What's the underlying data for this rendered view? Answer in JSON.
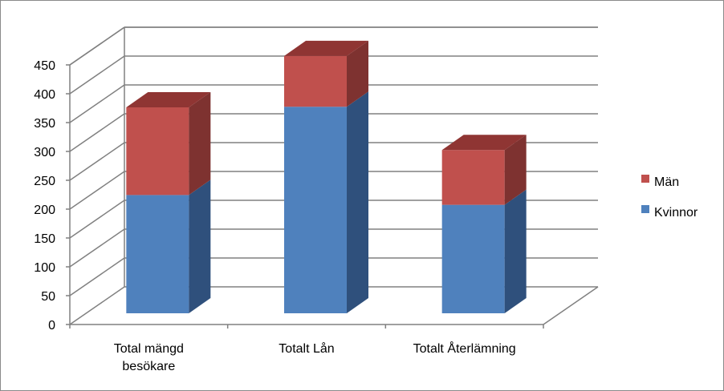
{
  "chart_data": {
    "type": "bar",
    "stacked": true,
    "style": "3d",
    "categories": [
      "Total mängd besökare",
      "Totalt Lån",
      "Totalt Återlämning"
    ],
    "category_lines": [
      [
        "Total mängd",
        "besökare"
      ],
      [
        "Totalt Lån"
      ],
      [
        "Totalt Återlämning"
      ]
    ],
    "series": [
      {
        "name": "Kvinnor",
        "values": [
          205,
          358,
          188
        ],
        "color": "#4f81bd",
        "side_color": "#2f507c",
        "top_color": "#3d68a2"
      },
      {
        "name": "Män",
        "values": [
          152,
          88,
          95
        ],
        "color": "#c0504d",
        "side_color": "#7e3230",
        "top_color": "#8f3533"
      }
    ],
    "legend_order": [
      "Män",
      "Kvinnor"
    ],
    "legend_position": "right",
    "ylim": [
      0,
      450
    ],
    "yticks": [
      "0",
      "50",
      "100",
      "150",
      "200",
      "250",
      "300",
      "350",
      "400",
      "450"
    ],
    "grid": true,
    "title": "",
    "xlabel": "",
    "ylabel": ""
  }
}
